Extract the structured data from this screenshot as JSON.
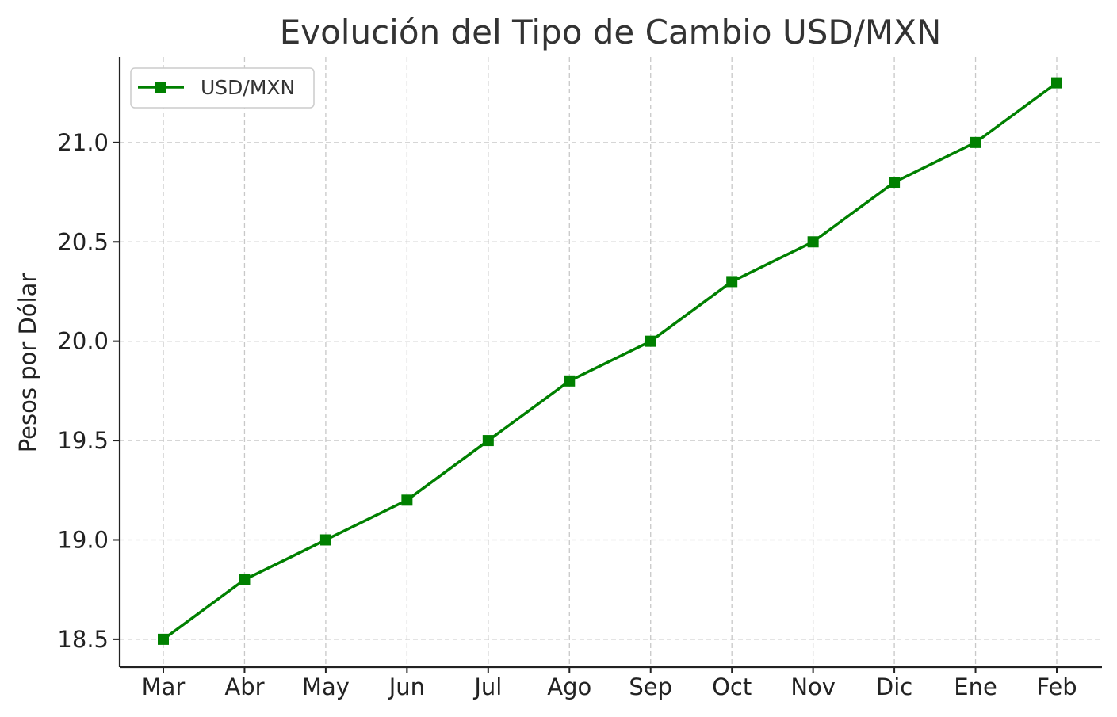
{
  "chart_data": {
    "type": "line",
    "title": "Evolución del Tipo de Cambio USD/MXN",
    "xlabel": "",
    "ylabel": "Pesos por Dólar",
    "categories": [
      "Mar",
      "Abr",
      "May",
      "Jun",
      "Jul",
      "Ago",
      "Sep",
      "Oct",
      "Nov",
      "Dic",
      "Ene",
      "Feb"
    ],
    "series": [
      {
        "name": "USD/MXN",
        "values": [
          18.5,
          18.8,
          19.0,
          19.2,
          19.5,
          19.8,
          20.0,
          20.3,
          20.5,
          20.8,
          21.0,
          21.3
        ],
        "color": "#008000",
        "marker": "square"
      }
    ],
    "ylim": [
      18.36,
      21.43
    ],
    "yticks": [
      18.5,
      19.0,
      19.5,
      20.0,
      20.5,
      21.0
    ],
    "ytick_labels": [
      "18.5",
      "19.0",
      "19.5",
      "20.0",
      "20.5",
      "21.0"
    ],
    "grid": true,
    "legend_position": "top-left"
  }
}
